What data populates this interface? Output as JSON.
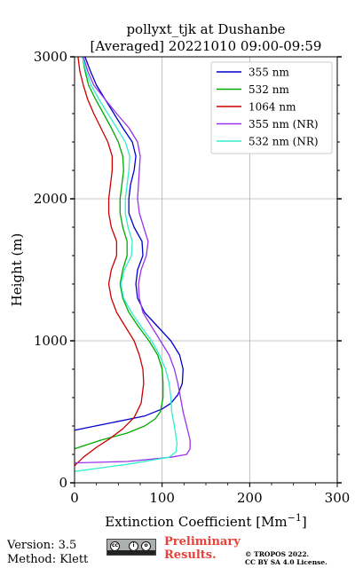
{
  "chart_data": {
    "type": "line",
    "title_line1": "pollyxt_tjk at Dushanbe",
    "title_line2": "[Averaged] 20221010 09:00-09:59",
    "xlabel": "Extinction Coefficient [Mm",
    "xlabel_sup": "−1",
    "xlabel_end": "]",
    "ylabel": "Height (m)",
    "xlim": [
      0,
      300
    ],
    "ylim": [
      0,
      3000
    ],
    "xticks": [
      0,
      100,
      200,
      300
    ],
    "yticks": [
      0,
      1000,
      2000,
      3000
    ],
    "grid": true,
    "legend_position": "top-right",
    "series": [
      {
        "name": "355 nm",
        "color": "#0000cc",
        "points": [
          [
            0,
            370
          ],
          [
            40,
            420
          ],
          [
            80,
            470
          ],
          [
            100,
            520
          ],
          [
            110,
            560
          ],
          [
            118,
            620
          ],
          [
            123,
            700
          ],
          [
            124,
            800
          ],
          [
            120,
            900
          ],
          [
            110,
            1000
          ],
          [
            95,
            1100
          ],
          [
            80,
            1200
          ],
          [
            72,
            1300
          ],
          [
            70,
            1400
          ],
          [
            72,
            1500
          ],
          [
            78,
            1600
          ],
          [
            77,
            1700
          ],
          [
            68,
            1800
          ],
          [
            62,
            1900
          ],
          [
            62,
            2000
          ],
          [
            64,
            2100
          ],
          [
            68,
            2200
          ],
          [
            70,
            2300
          ],
          [
            66,
            2400
          ],
          [
            55,
            2500
          ],
          [
            45,
            2600
          ],
          [
            35,
            2700
          ],
          [
            25,
            2800
          ],
          [
            18,
            2900
          ],
          [
            12,
            3000
          ]
        ]
      },
      {
        "name": "532 nm",
        "color": "#00aa00",
        "points": [
          [
            0,
            240
          ],
          [
            30,
            300
          ],
          [
            60,
            350
          ],
          [
            80,
            400
          ],
          [
            92,
            450
          ],
          [
            98,
            500
          ],
          [
            101,
            600
          ],
          [
            101,
            700
          ],
          [
            100,
            800
          ],
          [
            95,
            900
          ],
          [
            85,
            1000
          ],
          [
            73,
            1100
          ],
          [
            62,
            1200
          ],
          [
            55,
            1300
          ],
          [
            52,
            1400
          ],
          [
            55,
            1500
          ],
          [
            60,
            1600
          ],
          [
            60,
            1700
          ],
          [
            55,
            1800
          ],
          [
            52,
            1900
          ],
          [
            52,
            2000
          ],
          [
            54,
            2100
          ],
          [
            56,
            2200
          ],
          [
            55,
            2300
          ],
          [
            50,
            2400
          ],
          [
            42,
            2500
          ],
          [
            33,
            2600
          ],
          [
            24,
            2700
          ],
          [
            16,
            2800
          ],
          [
            12,
            2900
          ],
          [
            9,
            3000
          ]
        ]
      },
      {
        "name": "1064 nm",
        "color": "#cc0000",
        "points": [
          [
            0,
            120
          ],
          [
            10,
            180
          ],
          [
            25,
            250
          ],
          [
            40,
            310
          ],
          [
            55,
            380
          ],
          [
            68,
            460
          ],
          [
            76,
            560
          ],
          [
            79,
            700
          ],
          [
            78,
            800
          ],
          [
            74,
            900
          ],
          [
            68,
            1000
          ],
          [
            58,
            1100
          ],
          [
            48,
            1200
          ],
          [
            42,
            1300
          ],
          [
            39,
            1400
          ],
          [
            42,
            1500
          ],
          [
            48,
            1600
          ],
          [
            48,
            1700
          ],
          [
            42,
            1800
          ],
          [
            39,
            1900
          ],
          [
            39,
            2000
          ],
          [
            41,
            2100
          ],
          [
            43,
            2200
          ],
          [
            43,
            2300
          ],
          [
            38,
            2400
          ],
          [
            30,
            2500
          ],
          [
            22,
            2600
          ],
          [
            15,
            2700
          ],
          [
            10,
            2800
          ],
          [
            6,
            2900
          ],
          [
            4,
            3000
          ]
        ]
      },
      {
        "name": "355 nm (NR)",
        "color": "#9933ee",
        "points": [
          [
            0,
            140
          ],
          [
            60,
            150
          ],
          [
            110,
            180
          ],
          [
            128,
            200
          ],
          [
            132,
            240
          ],
          [
            132,
            300
          ],
          [
            128,
            400
          ],
          [
            124,
            500
          ],
          [
            121,
            600
          ],
          [
            118,
            700
          ],
          [
            114,
            800
          ],
          [
            108,
            900
          ],
          [
            98,
            1000
          ],
          [
            88,
            1100
          ],
          [
            78,
            1200
          ],
          [
            74,
            1300
          ],
          [
            73,
            1400
          ],
          [
            76,
            1500
          ],
          [
            82,
            1600
          ],
          [
            84,
            1700
          ],
          [
            79,
            1800
          ],
          [
            74,
            1900
          ],
          [
            72,
            2000
          ],
          [
            73,
            2100
          ],
          [
            74,
            2200
          ],
          [
            75,
            2300
          ],
          [
            72,
            2400
          ],
          [
            62,
            2500
          ],
          [
            48,
            2600
          ],
          [
            35,
            2700
          ],
          [
            22,
            2800
          ],
          [
            15,
            2900
          ],
          [
            10,
            3000
          ]
        ]
      },
      {
        "name": "532 nm (NR)",
        "color": "#33eecc",
        "points": [
          [
            0,
            80
          ],
          [
            60,
            130
          ],
          [
            108,
            180
          ],
          [
            116,
            220
          ],
          [
            117,
            280
          ],
          [
            114,
            400
          ],
          [
            111,
            500
          ],
          [
            110,
            600
          ],
          [
            108,
            700
          ],
          [
            104,
            800
          ],
          [
            97,
            900
          ],
          [
            88,
            1000
          ],
          [
            76,
            1100
          ],
          [
            65,
            1200
          ],
          [
            56,
            1300
          ],
          [
            53,
            1400
          ],
          [
            57,
            1500
          ],
          [
            65,
            1600
          ],
          [
            66,
            1700
          ],
          [
            61,
            1800
          ],
          [
            58,
            1900
          ],
          [
            58,
            2000
          ],
          [
            60,
            2100
          ],
          [
            62,
            2200
          ],
          [
            63,
            2300
          ],
          [
            58,
            2400
          ],
          [
            48,
            2500
          ],
          [
            38,
            2600
          ],
          [
            28,
            2700
          ],
          [
            19,
            2800
          ],
          [
            13,
            2900
          ],
          [
            9,
            3000
          ]
        ]
      }
    ]
  },
  "footer": {
    "version": "Version: 3.5",
    "method": "Method: Klett",
    "preliminary_line1": "Preliminary",
    "preliminary_line2": "Results.",
    "copyright_line1": "© TROPOS 2022.",
    "copyright_line2": "CC BY SA 4.0 License."
  }
}
